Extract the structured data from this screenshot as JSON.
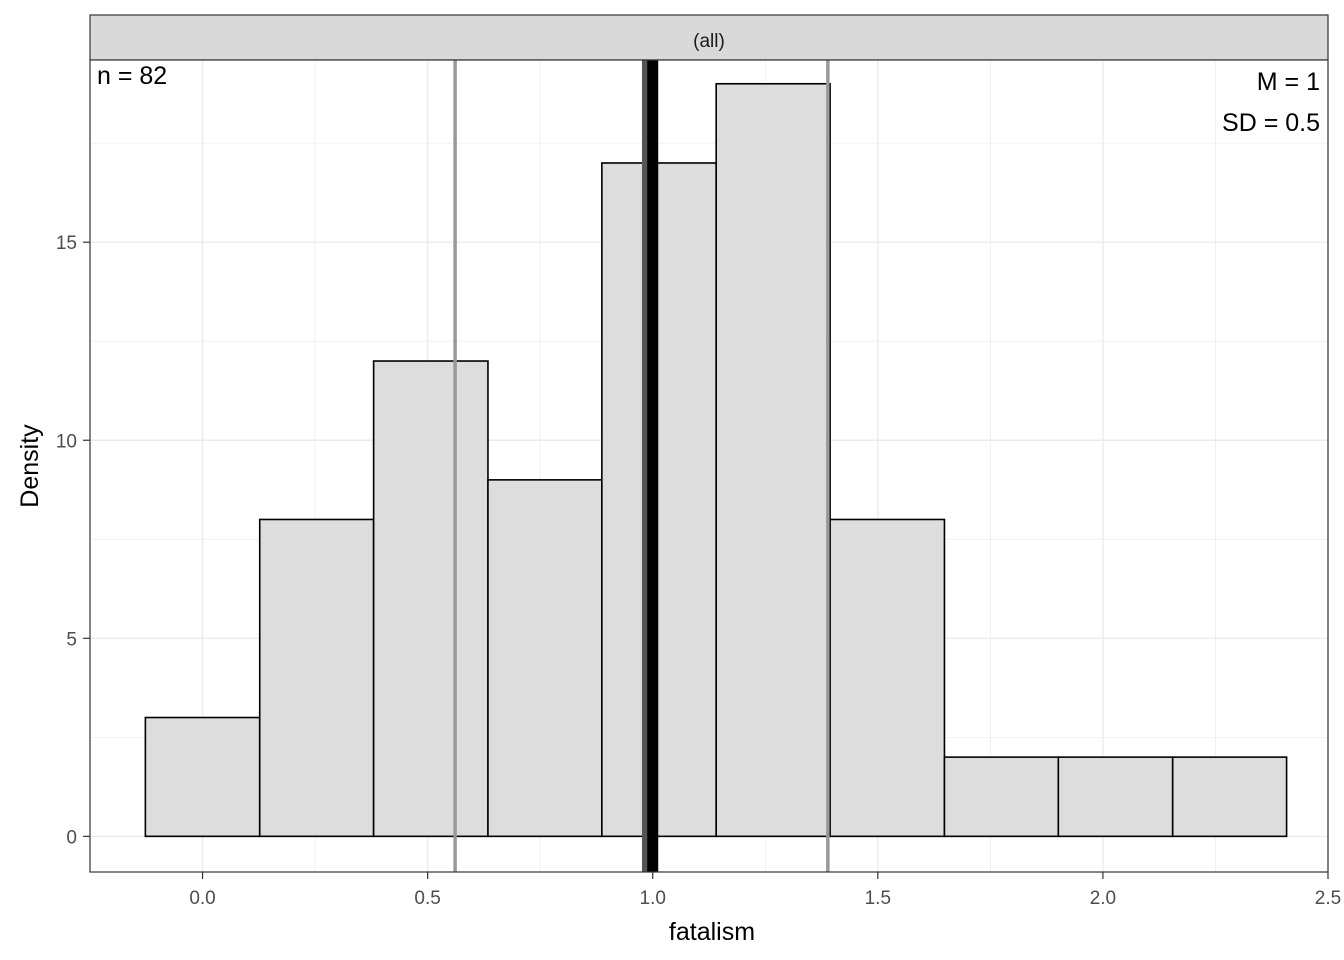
{
  "chart_data": {
    "type": "bar",
    "subtype": "histogram",
    "facet_label": "(all)",
    "xlabel": "fatalism",
    "ylabel": "Density",
    "xlim": [
      -0.25,
      2.5
    ],
    "ylim": [
      -0.9,
      19.6
    ],
    "xticks": [
      0.0,
      0.5,
      1.0,
      1.5,
      2.0,
      2.5
    ],
    "xtick_labels": [
      "0.0",
      "0.5",
      "1.0",
      "1.5",
      "2.0",
      "2.5"
    ],
    "yticks": [
      0,
      5,
      10,
      15
    ],
    "ytick_labels": [
      "0",
      "5",
      "10",
      "15"
    ],
    "grid": true,
    "bins": [
      {
        "x0": -0.127,
        "x1": 0.127,
        "value": 3
      },
      {
        "x0": 0.127,
        "x1": 0.38,
        "value": 8
      },
      {
        "x0": 0.38,
        "x1": 0.634,
        "value": 12
      },
      {
        "x0": 0.634,
        "x1": 0.887,
        "value": 9
      },
      {
        "x0": 0.887,
        "x1": 1.141,
        "value": 17
      },
      {
        "x0": 1.141,
        "x1": 1.394,
        "value": 19
      },
      {
        "x0": 1.394,
        "x1": 1.648,
        "value": 8
      },
      {
        "x0": 1.648,
        "x1": 1.901,
        "value": 2
      },
      {
        "x0": 1.901,
        "x1": 2.155,
        "value": 2
      },
      {
        "x0": 2.155,
        "x1": 2.408,
        "value": 2
      }
    ],
    "reference_lines": [
      {
        "name": "sd-lower-line",
        "x": 0.561,
        "color": "#999999"
      },
      {
        "name": "median-line",
        "x": 0.985,
        "color": "#555555"
      },
      {
        "name": "mean-line",
        "x": 1.0,
        "color": "#000000"
      },
      {
        "name": "sd-upper-line",
        "x": 1.389,
        "color": "#999999"
      }
    ],
    "annotations": {
      "n": "n = 82",
      "mean": "M = 1",
      "sd": "SD = 0.5"
    },
    "colors": {
      "bar_fill": "#dddddd",
      "bar_stroke": "#000000",
      "grid": "#ebebeb",
      "strip_fill": "#d9d9d9"
    }
  }
}
